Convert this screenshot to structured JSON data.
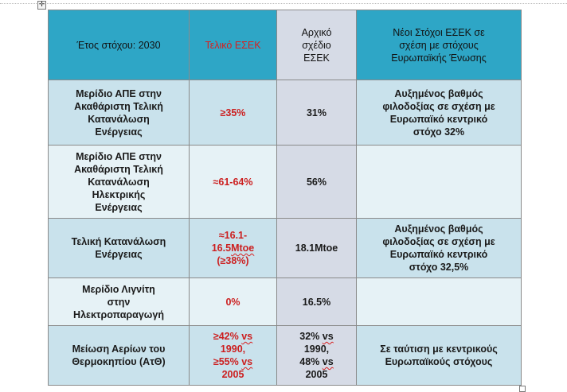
{
  "table": {
    "headers": [
      "Έτος στόχου:  2030",
      "Τελικό ΕΣΕΚ",
      "Αρχικό\nσχέδιο\nΕΣΕΚ",
      "Νέοι Στόχοι  ΕΣΕΚ σε\nσχέση  με στόχους\nΕυρωπαϊκής  Ένωσης"
    ],
    "rows": [
      {
        "indicator": "Μερίδιο ΑΠΕ στην\nΑκαθάριστη Τελική\nΚατανάλωση\nΕνέργειας",
        "final": "≥35%",
        "initial": "31%",
        "new_targets": "Αυξημένος βαθμός\nφιλοδοξίας σε σχέση με\nΕυρωπαϊκό κεντρικό\nστόχο 32%"
      },
      {
        "indicator": "Μερίδιο ΑΠΕ στην\nΑκαθάριστη Τελική\nΚατανάλωση\nΗλεκτρικής\nΕνέργειας",
        "final": "≈61-64%",
        "initial": "56%",
        "new_targets": ""
      },
      {
        "indicator": "Τελική Κατανάλωση\nΕνέργειας",
        "final_parts": [
          "≈16.1-\n16.5",
          "Mtoe",
          "\n(≥38%)"
        ],
        "initial": "18.1Mtoe",
        "new_targets": "Αυξημένος βαθμός\nφιλοδοξίας σε σχέση με\nΕυρωπαϊκό κεντρικό\nστόχο 32,5%"
      },
      {
        "indicator": "Μερίδιο Λιγνίτη\nστην\nΗλεκτροπαραγωγή",
        "final": "0%",
        "initial": "16.5%",
        "new_targets": ""
      },
      {
        "indicator": "Μείωση Αερίων του\nΘερμοκηπίου (ΑτΘ)",
        "final_parts": [
          "≥42% ",
          "vs",
          "\n1990,\n≥55% ",
          "vs",
          "\n2005"
        ],
        "initial_parts": [
          "32% ",
          "vs",
          "\n1990,\n48% ",
          "vs",
          "\n2005"
        ],
        "new_targets": "Σε ταύτιση  με κεντρικούς\nΕυρωπαϊκούς  στόχους"
      }
    ]
  },
  "ui": {
    "move_handle_icon": "move-arrows-icon",
    "resize_handle_icon": "resize-square-icon"
  },
  "colors": {
    "header_accent": "#2ea6c6",
    "row_dark": "#c9e2ec",
    "row_light": "#e6f2f6",
    "initial_column": "#d6dbe6",
    "final_text": "#cc1f1f"
  }
}
